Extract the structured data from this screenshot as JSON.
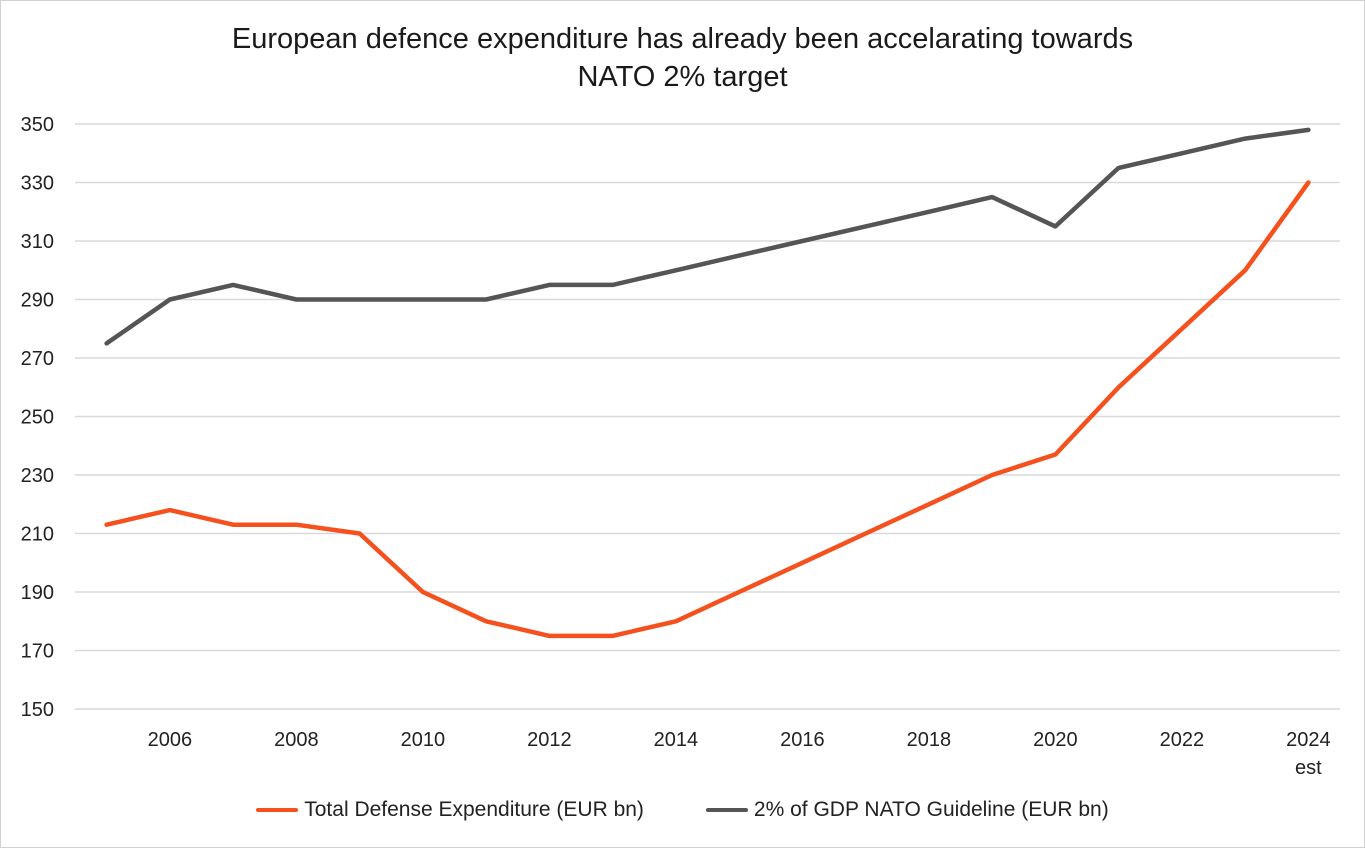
{
  "chart_data": {
    "type": "line",
    "title_lines": [
      "European defence expenditure has already been accelarating towards",
      "NATO 2% target"
    ],
    "xlabel": "",
    "ylabel": "",
    "x": [
      2005,
      2006,
      2007,
      2008,
      2009,
      2010,
      2011,
      2012,
      2013,
      2014,
      2015,
      2016,
      2017,
      2018,
      2019,
      2020,
      2021,
      2022,
      2023,
      2024
    ],
    "x_tick_labels": [
      {
        "x": 2006,
        "label": "2006"
      },
      {
        "x": 2008,
        "label": "2008"
      },
      {
        "x": 2010,
        "label": "2010"
      },
      {
        "x": 2012,
        "label": "2012"
      },
      {
        "x": 2014,
        "label": "2014"
      },
      {
        "x": 2016,
        "label": "2016"
      },
      {
        "x": 2018,
        "label": "2018"
      },
      {
        "x": 2020,
        "label": "2020"
      },
      {
        "x": 2022,
        "label": "2022"
      },
      {
        "x": 2024,
        "label": "2024",
        "sublabel": "est"
      }
    ],
    "ylim": [
      150,
      350
    ],
    "yticks": [
      150,
      170,
      190,
      210,
      230,
      250,
      270,
      290,
      310,
      330,
      350
    ],
    "grid": true,
    "legend_position": "bottom",
    "series": [
      {
        "name": "Total Defense Expenditure (EUR bn)",
        "color": "#f4511e",
        "values": [
          213,
          218,
          213,
          213,
          210,
          190,
          180,
          175,
          175,
          180,
          190,
          200,
          210,
          220,
          230,
          237,
          260,
          280,
          300,
          330
        ]
      },
      {
        "name": "2% of GDP NATO Guideline (EUR bn)",
        "color": "#555555",
        "values": [
          275,
          290,
          295,
          290,
          290,
          290,
          290,
          295,
          295,
          300,
          305,
          310,
          315,
          320,
          325,
          315,
          335,
          340,
          345,
          348
        ]
      }
    ]
  }
}
